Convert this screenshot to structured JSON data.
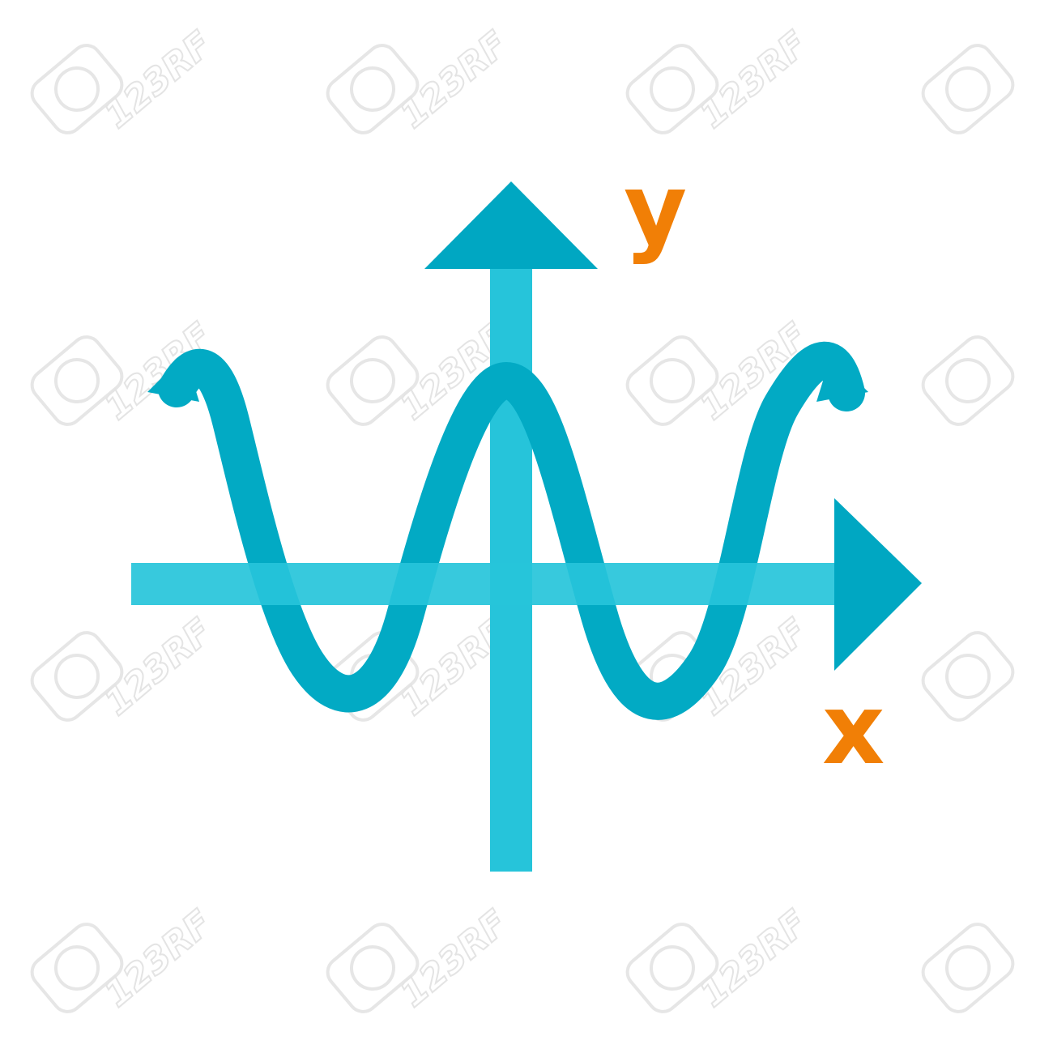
{
  "icon": {
    "name": "sine-wave-graph-icon",
    "labels": {
      "x": "x",
      "y": "y"
    },
    "colors": {
      "background": "#ffffff",
      "axis": "#26c4da",
      "wave": "#02aac4",
      "arrowhead": "#00a7c2",
      "label": "#f17f06",
      "watermark": "#e4e4e4"
    }
  },
  "watermark": {
    "text": "123RF"
  }
}
